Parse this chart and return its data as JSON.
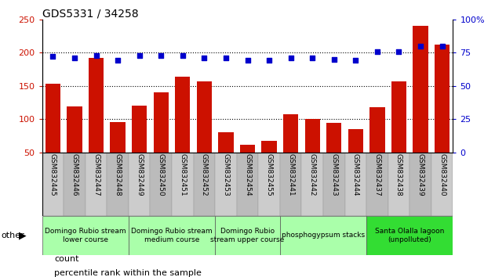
{
  "title": "GDS5331 / 34258",
  "samples": [
    "GSM832445",
    "GSM832446",
    "GSM832447",
    "GSM832448",
    "GSM832449",
    "GSM832450",
    "GSM832451",
    "GSM832452",
    "GSM832453",
    "GSM832454",
    "GSM832455",
    "GSM832441",
    "GSM832442",
    "GSM832443",
    "GSM832444",
    "GSM832437",
    "GSM832438",
    "GSM832439",
    "GSM832440"
  ],
  "counts": [
    153,
    119,
    192,
    96,
    120,
    140,
    164,
    157,
    80,
    61,
    67,
    107,
    100,
    94,
    85,
    118,
    157,
    240,
    212
  ],
  "percentiles": [
    72,
    71,
    73,
    69,
    73,
    73,
    73,
    71,
    71,
    69,
    69,
    71,
    71,
    70,
    69,
    76,
    76,
    80,
    80
  ],
  "groups": [
    {
      "label": "Domingo Rubio stream\nlower course",
      "start": 0,
      "end": 4,
      "color": "#aaffaa"
    },
    {
      "label": "Domingo Rubio stream\nmedium course",
      "start": 4,
      "end": 8,
      "color": "#aaffaa"
    },
    {
      "label": "Domingo Rubio\nstream upper course",
      "start": 8,
      "end": 11,
      "color": "#aaffaa"
    },
    {
      "label": "phosphogypsum stacks",
      "start": 11,
      "end": 15,
      "color": "#aaffaa"
    },
    {
      "label": "Santa Olalla lagoon\n(unpolluted)",
      "start": 15,
      "end": 19,
      "color": "#33dd33"
    }
  ],
  "bar_color": "#cc1100",
  "dot_color": "#0000cc",
  "ylim_left": [
    50,
    250
  ],
  "ylim_right": [
    0,
    100
  ],
  "yticks_left": [
    50,
    100,
    150,
    200,
    250
  ],
  "yticks_right": [
    0,
    25,
    50,
    75,
    100
  ],
  "grid_lines": [
    100,
    150,
    200
  ],
  "col_colors": [
    "#cccccc",
    "#bbbbbb"
  ]
}
